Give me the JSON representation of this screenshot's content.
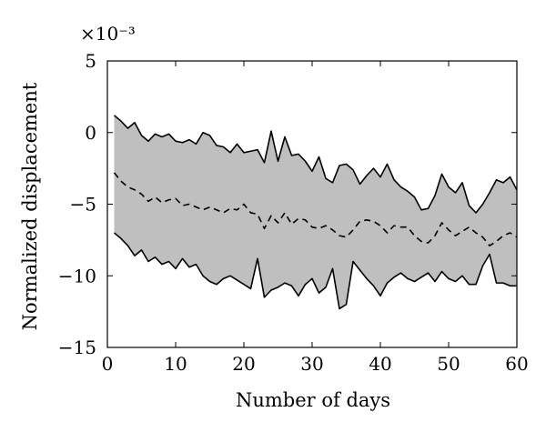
{
  "chart_data": {
    "type": "area",
    "xlabel": "Number of days",
    "ylabel": "Normalized displacement",
    "y_exponent": "×10⁻³",
    "xlim": [
      0,
      60
    ],
    "ylim": [
      -15,
      5
    ],
    "x_ticks": [
      "0",
      "10",
      "20",
      "30",
      "40",
      "50",
      "60"
    ],
    "y_ticks": [
      "5",
      "0",
      "−5",
      "−10",
      "−15"
    ],
    "grid": false,
    "legend": "none",
    "band_color": "#bfbfbf",
    "line_color": "#000000",
    "x": [
      1,
      2,
      3,
      4,
      5,
      6,
      7,
      8,
      9,
      10,
      11,
      12,
      13,
      14,
      15,
      16,
      17,
      18,
      19,
      20,
      21,
      22,
      23,
      24,
      25,
      26,
      27,
      28,
      29,
      30,
      31,
      32,
      33,
      34,
      35,
      36,
      37,
      38,
      39,
      40,
      41,
      42,
      43,
      44,
      45,
      46,
      47,
      48,
      49,
      50,
      51,
      52,
      53,
      54,
      55,
      56,
      57,
      58,
      59,
      60
    ],
    "series": [
      {
        "style": "solid",
        "role": "upper-bound",
        "values": [
          1.2,
          0.8,
          0.3,
          0.7,
          -0.2,
          -0.6,
          -0.1,
          -0.3,
          -0.1,
          -0.6,
          -0.7,
          -0.5,
          -0.8,
          0.0,
          -0.2,
          -0.9,
          -1.0,
          -1.4,
          -0.8,
          -1.4,
          -1.3,
          -1.2,
          -2.1,
          0.1,
          -2.0,
          -0.3,
          -1.6,
          -1.5,
          -2.0,
          -2.7,
          -1.7,
          -3.2,
          -3.5,
          -2.3,
          -2.2,
          -2.6,
          -3.6,
          -3.0,
          -2.5,
          -3.1,
          -2.2,
          -3.3,
          -3.8,
          -4.1,
          -4.5,
          -5.4,
          -5.3,
          -4.4,
          -2.9,
          -3.8,
          -4.2,
          -3.5,
          -5.1,
          -5.6,
          -5.0,
          -4.2,
          -3.3,
          -3.5,
          -3.1,
          -4.0
        ]
      },
      {
        "style": "dashed",
        "role": "mean",
        "values": [
          -2.8,
          -3.4,
          -3.8,
          -4.0,
          -4.3,
          -4.8,
          -4.5,
          -4.9,
          -4.7,
          -4.6,
          -5.1,
          -5.0,
          -5.2,
          -5.4,
          -5.2,
          -5.4,
          -5.6,
          -5.3,
          -5.4,
          -5.0,
          -5.6,
          -5.7,
          -6.7,
          -5.8,
          -6.3,
          -5.6,
          -6.4,
          -6.0,
          -6.1,
          -6.6,
          -6.7,
          -6.5,
          -6.8,
          -7.2,
          -7.3,
          -6.8,
          -6.2,
          -6.1,
          -6.2,
          -6.5,
          -7.0,
          -6.5,
          -6.6,
          -6.6,
          -7.2,
          -7.6,
          -7.7,
          -7.2,
          -6.3,
          -6.8,
          -7.2,
          -6.9,
          -6.6,
          -7.0,
          -7.3,
          -7.9,
          -7.6,
          -7.2,
          -7.0,
          -7.3
        ]
      },
      {
        "style": "solid",
        "role": "lower-bound",
        "values": [
          -7.0,
          -7.4,
          -7.9,
          -8.6,
          -8.2,
          -9.0,
          -8.7,
          -9.2,
          -9.0,
          -9.5,
          -8.8,
          -9.4,
          -9.2,
          -10.0,
          -10.4,
          -10.6,
          -10.2,
          -10.0,
          -10.3,
          -10.6,
          -10.9,
          -8.8,
          -11.5,
          -11.0,
          -10.8,
          -10.5,
          -10.7,
          -11.4,
          -10.6,
          -10.2,
          -11.2,
          -10.8,
          -9.5,
          -12.3,
          -12.0,
          -9.0,
          -9.6,
          -10.2,
          -10.7,
          -11.4,
          -10.5,
          -10.1,
          -9.8,
          -10.2,
          -10.4,
          -10.1,
          -9.8,
          -10.4,
          -9.7,
          -10.2,
          -10.4,
          -10.0,
          -10.6,
          -10.6,
          -9.3,
          -8.5,
          -10.5,
          -10.5,
          -10.7,
          -10.7
        ]
      }
    ]
  }
}
